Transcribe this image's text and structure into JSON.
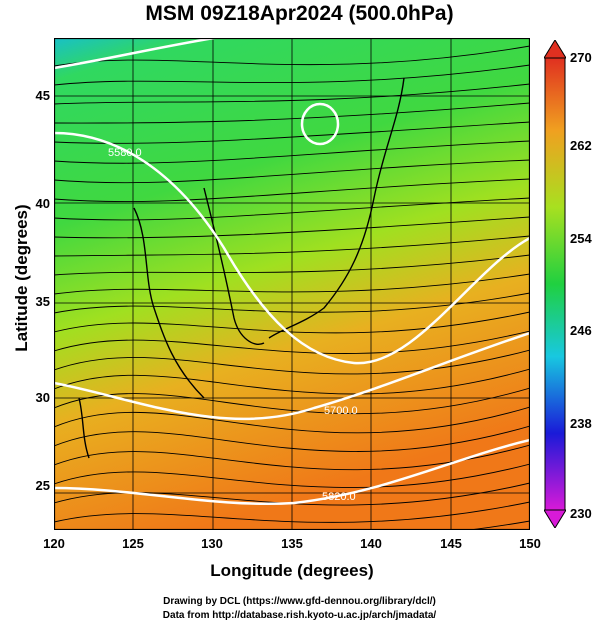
{
  "title": "MSM 09Z18Apr2024 (500.0hPa)",
  "xlabel": "Longitude (degrees)",
  "ylabel": "Latitude  (degrees)",
  "x_ticks": [
    "120",
    "125",
    "130",
    "135",
    "140",
    "145",
    "150"
  ],
  "y_ticks": [
    "45",
    "40",
    "35",
    "30",
    "25"
  ],
  "colorbar_ticks": [
    "270",
    "262",
    "254",
    "246",
    "238",
    "230"
  ],
  "contour_labels": [
    "5580.0",
    "5700.0",
    "5820.0"
  ],
  "credits": {
    "line1": "Drawing by DCL (https://www.gfd-dennou.org/library/dcl/)",
    "line2": "Data from http://database.rish.kyoto-u.ac.jp/arch/jmadata/"
  },
  "map_data": {
    "lon_range": [
      120,
      150
    ],
    "lat_range": [
      22.5,
      48
    ],
    "colorbar_range": [
      230,
      270
    ],
    "colormap": [
      "#d81ad8",
      "#1a1ad8",
      "#18c8e0",
      "#20d040",
      "#a8e020",
      "#f0a020",
      "#e03020"
    ]
  }
}
